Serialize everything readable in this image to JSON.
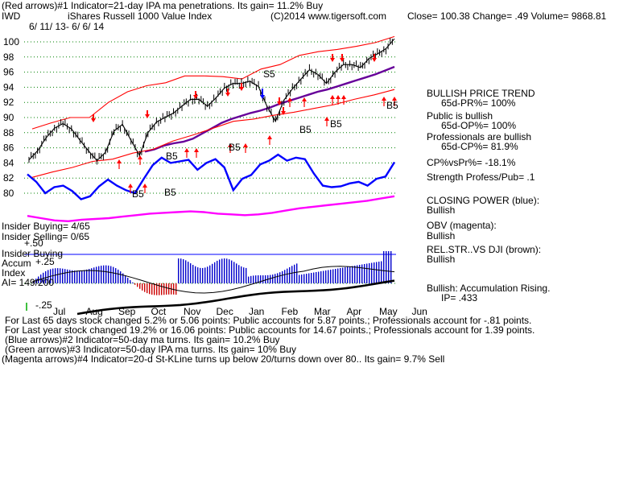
{
  "header": {
    "line1": "(Red arrows)#1 Indicator=21-day IPA ma penetrations. Its gain= 11.2% Buy",
    "ticker": "IWD",
    "name": "iShares Russell 1000 Value Index",
    "copyright": "(C)2014 www.tigersoft.com",
    "quote": "Close= 100.38  Change= .49 Volume= 9868.81",
    "date_range": "6/ 11/ 13- 6/ 6/ 14"
  },
  "chart_data": {
    "type": "line",
    "title": "iShares Russell 1000 Value Index",
    "price_axis": {
      "ticks": [
        100,
        98,
        96,
        94,
        92,
        90,
        88,
        86,
        84,
        82,
        80
      ],
      "ylim": [
        78.5,
        101.5
      ]
    },
    "x_ticks": [
      "Jul",
      "Aug",
      "Sep",
      "Oct",
      "Nov",
      "Dec",
      "Jan",
      "Feb",
      "Mar",
      "Apr",
      "May",
      "Jun"
    ],
    "series": [
      {
        "name": "Price",
        "color": "#000000",
        "values": [
          84.4,
          85.6,
          87.3,
          88.6,
          89.2,
          88.5,
          87.0,
          85.6,
          84.3,
          85.4,
          88.2,
          89.1,
          87.0,
          85.0,
          88.0,
          89.4,
          90.0,
          90.6,
          91.5,
          92.4,
          92.4,
          91.5,
          92.6,
          93.9,
          94.5,
          94.5,
          94.8,
          94.1,
          91.5,
          89.5,
          92.3,
          93.8,
          95.1,
          96.3,
          95.7,
          94.5,
          96.0,
          97.0,
          97.0,
          96.6,
          97.8,
          98.4,
          99.1,
          100.4
        ]
      },
      {
        "name": "CLOSING POWER",
        "color": "#0000ff",
        "values": [
          82.5,
          81.5,
          80.0,
          80.8,
          81.0,
          80.3,
          79.2,
          79.6,
          80.9,
          81.8,
          81.0,
          80.4,
          80.0,
          81.9,
          83.7,
          84.7,
          84.0,
          84.2,
          84.4,
          83.1,
          84.0,
          84.5,
          83.4,
          80.4,
          81.9,
          82.4,
          83.8,
          84.3,
          85.1,
          84.3,
          84.7,
          84.5,
          82.6,
          81.0,
          80.8,
          80.9,
          81.3,
          81.5,
          81.0,
          81.9,
          82.2,
          84.1
        ]
      },
      {
        "name": "OBV",
        "color": "#ff00ff",
        "values": [
          77.0,
          76.7,
          76.4,
          76.3,
          76.5,
          76.6,
          76.7,
          76.9,
          77.1,
          77.3,
          77.4,
          77.5,
          77.6,
          77.5,
          77.3,
          77.2,
          77.1,
          77.2,
          77.4,
          77.7,
          78.0,
          78.2,
          78.4,
          78.6,
          78.8,
          79.0,
          79.3,
          79.6
        ]
      },
      {
        "name": "21-day ma",
        "color": "#660099",
        "values": [
          85.5,
          85.8,
          86.3,
          86.6,
          86.8,
          87.2,
          87.9,
          88.6,
          89.3,
          89.8,
          90.2,
          90.6,
          90.9,
          91.3,
          91.8,
          92.2,
          92.6,
          93.0,
          93.4,
          93.7,
          94.1,
          94.5,
          94.9,
          95.3,
          95.7,
          96.2,
          96.7
        ]
      },
      {
        "name": "Upper band",
        "color": "#ff0000",
        "values": [
          88.5,
          89.3,
          90.0,
          90.0,
          92.0,
          93.4,
          94.2,
          94.6,
          95.5,
          95.5,
          95.4,
          95.1,
          96.4,
          97.0,
          98.2,
          98.7,
          99.0,
          99.4,
          99.9,
          100.7
        ]
      },
      {
        "name": "Lower band",
        "color": "#ff0000",
        "values": [
          82.1,
          82.8,
          83.4,
          84.2,
          84.5,
          85.3,
          85.8,
          86.9,
          87.7,
          88.6,
          89.5,
          89.8,
          90.3,
          90.7,
          91.2,
          91.7,
          92.4,
          93.0,
          93.7
        ]
      }
    ],
    "signals": {
      "labels": [
        "B5",
        "B5",
        "B5",
        "B5",
        "B5",
        "B5",
        "B5",
        "S5"
      ]
    }
  },
  "right_panel": {
    "trend": "BULLISH PRICE TREND",
    "trend_sub": "65d-PR%= 100%",
    "public_title": "Public is bullish",
    "public_sub": "65d-OP%= 100%",
    "pro_title": "Professionals are bullish",
    "pro_sub": "65d-CP%= 81.9%",
    "cp_vs_pr": "CP%vsPr%= -18.1%",
    "strength": "Strength Profess/Pub= .1",
    "cp_title": "CLOSING POWER (blue):",
    "cp_val": "Bullish",
    "obv_title": "OBV (magenta):",
    "obv_val": "Bullish",
    "rel_title": "REL.STR..VS DJI (brown):",
    "rel_val": "Bullish",
    "accum_title": "Bullish: Accumulation Rising.",
    "accum_ip": "IP= .433"
  },
  "insider": {
    "buying": "Insider Buying= 4/65",
    "selling": "Insider Selling= 0/65"
  },
  "accum_panel": {
    "title1": "Insider Buying",
    "title2": "Accum",
    "title3": "Index",
    "plus": "+.25",
    "plus50": "+.50",
    "ai": "AI= 149/200",
    "minus": "-.25"
  },
  "footer": {
    "line1": "For Last 65 days stock changed  5.2% or  5.06 points:  Public accounts for  5.87 points.;  Professionals account for -.81 points.",
    "line2": "For Last year stock changed  19.2% or  16.06 points:  Public accounts for  14.67 points.;  Professionals account for  1.39 points.",
    "line3": "(Blue arrows)#2 Indicator=50-day ma turns. Its gain= 10.2% Buy",
    "line4": "(Green arrows)#3 Indicator=50-day IPA ma turns. Its gain= 10% Buy",
    "line5": "(Magenta arrows)#4 Indicator=20-d St-KLine turns up below 20/turns down over 80.. Its gain= 9.7% Sell"
  },
  "colors": {
    "price": "#000000",
    "closing_power": "#0000ff",
    "obv": "#ff00ff",
    "ma": "#660099",
    "band": "#ff0000",
    "grid": "#008000",
    "accum_pos": "#0000cc",
    "accum_neg": "#cc0000",
    "rel_str": "#000000"
  }
}
